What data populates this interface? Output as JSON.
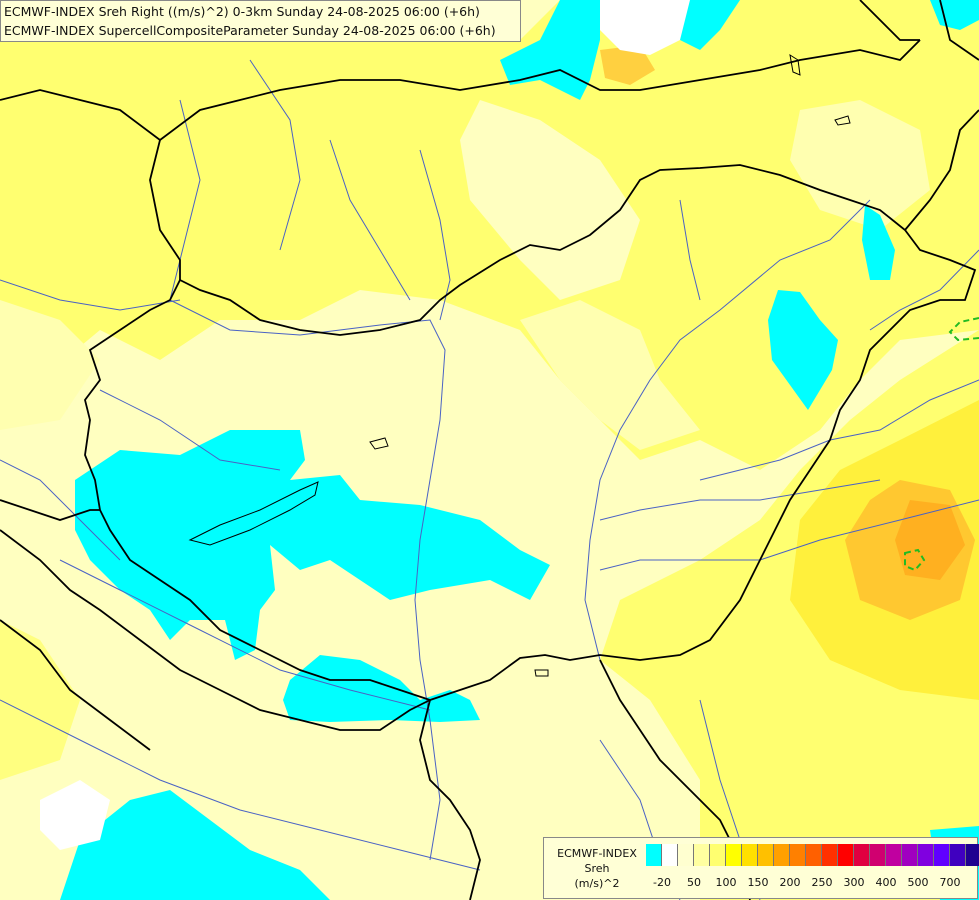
{
  "header": {
    "line1": "ECMWF-INDEX Sreh Right ((m/s)^2) 0-3km Sunday 24-08-2025 06:00 (+6h)",
    "line2": "ECMWF-INDEX SupercellCompositeParameter Sunday 24-08-2025 06:00 (+6h)"
  },
  "legend": {
    "title_line1": "ECMWF-INDEX",
    "title_line2": "Sreh",
    "title_line3": "(m/s)^2",
    "colors": [
      "#00ffff",
      "#ffffff",
      "#ffffd0",
      "#ffffa0",
      "#ffff70",
      "#ffff00",
      "#ffe000",
      "#ffc000",
      "#ffa000",
      "#ff8000",
      "#ff6000",
      "#ff3000",
      "#ff0000",
      "#e00040",
      "#d00070",
      "#c000a0",
      "#a000c0",
      "#8000e0",
      "#6000ff",
      "#4000c0",
      "#200090",
      "#000060"
    ],
    "tick_labels": [
      "-20",
      "50",
      "100",
      "150",
      "200",
      "250",
      "300",
      "400",
      "500",
      "700"
    ]
  },
  "map": {
    "colors": {
      "background": "#ffffc0",
      "light_yellow": "#ffffa8",
      "yellow": "#ffff66",
      "deep_yellow": "#fff03c",
      "orange": "#ffc020",
      "cyan": "#00ffff",
      "white": "#ffffff",
      "border": "#000000",
      "river": "#4a62c4",
      "scp_contour": "#22bb22"
    }
  }
}
